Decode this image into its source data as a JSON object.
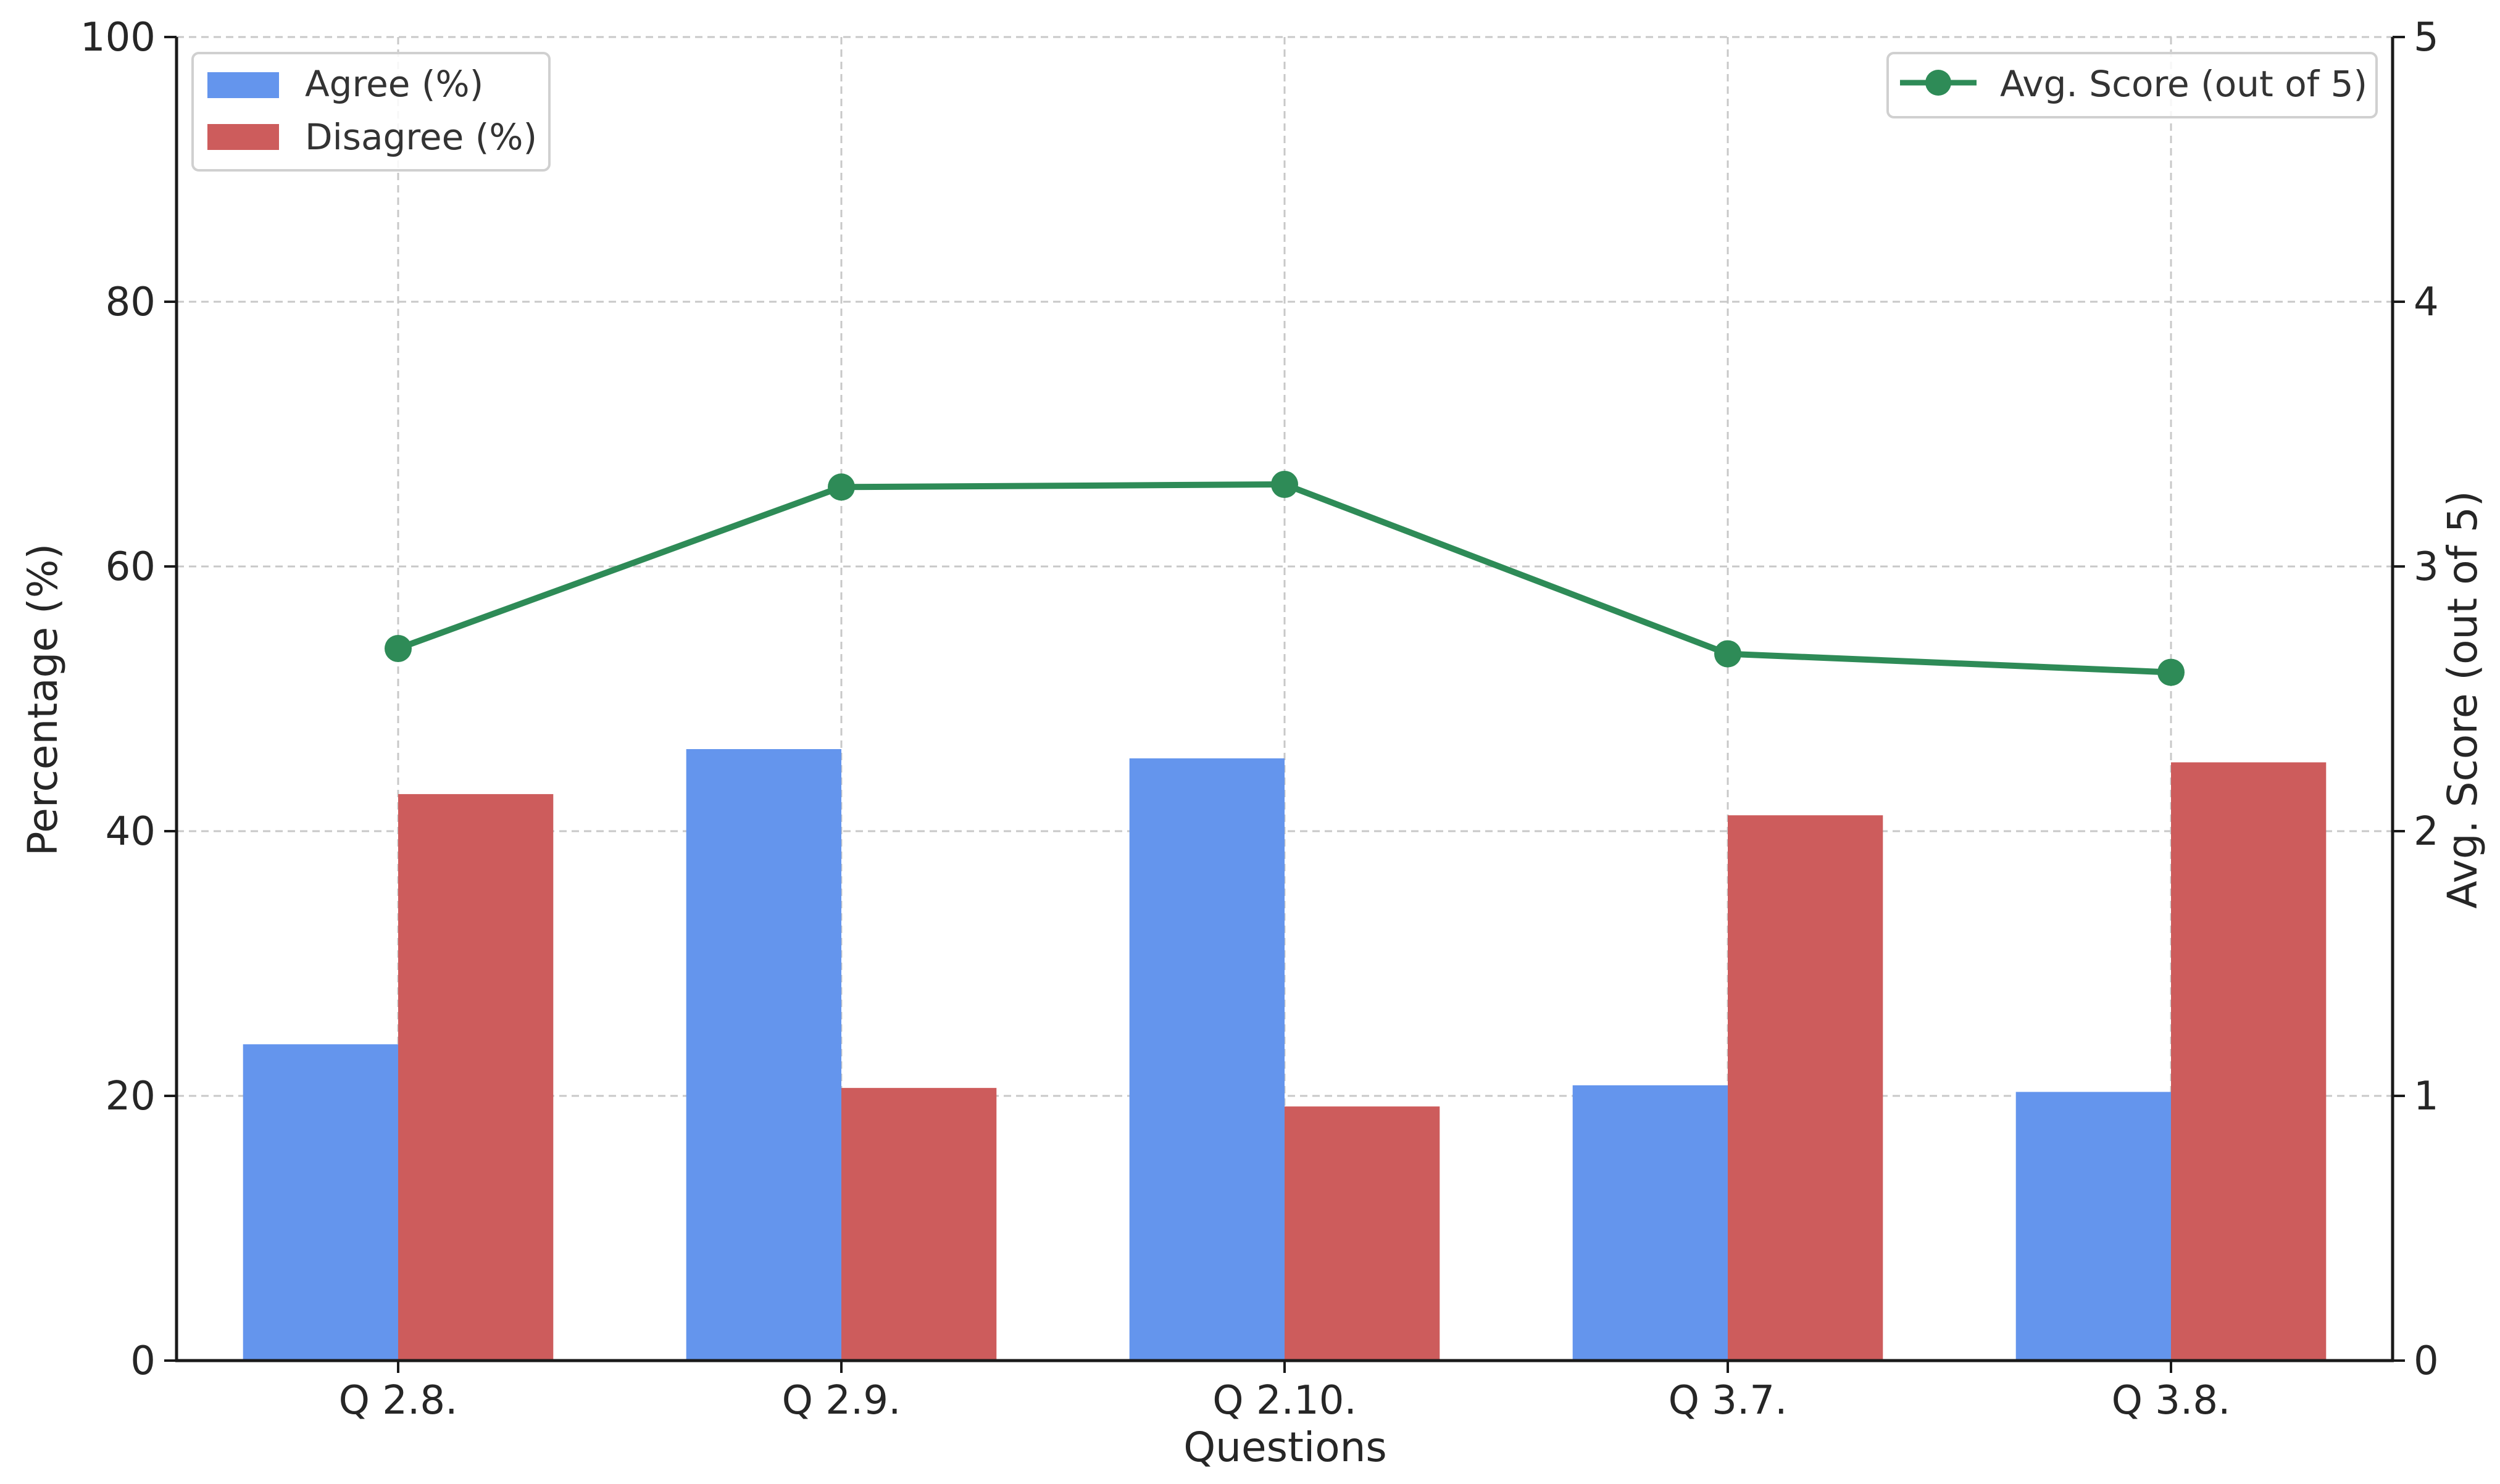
{
  "chart_data": {
    "type": "bar",
    "categories": [
      "Q 2.8.",
      "Q 2.9.",
      "Q 2.10.",
      "Q 3.7.",
      "Q 3.8."
    ],
    "xlabel": "Questions",
    "ylabel": "Percentage (%)",
    "y2label": "Avg. Score (out of 5)",
    "ylim": [
      0,
      100
    ],
    "y2lim": [
      0,
      5
    ],
    "yticks": [
      "0",
      "20",
      "40",
      "60",
      "80",
      "100"
    ],
    "y2ticks": [
      "0",
      "1",
      "2",
      "3",
      "4",
      "5"
    ],
    "grid": true,
    "series": [
      {
        "name": "Agree (%)",
        "type": "bar",
        "axis": "left",
        "color": "#6495ED",
        "values": [
          23.9,
          46.2,
          45.5,
          20.8,
          20.3
        ]
      },
      {
        "name": "Disagree (%)",
        "type": "bar",
        "axis": "left",
        "color": "#CD5C5C",
        "values": [
          42.8,
          20.6,
          19.2,
          41.2,
          45.2
        ]
      },
      {
        "name": "Avg. Score (out of 5)",
        "type": "line",
        "axis": "right",
        "color": "#2E8B57",
        "values": [
          2.69,
          3.3,
          3.31,
          2.67,
          2.6
        ]
      }
    ],
    "legend_left": [
      "Agree (%)",
      "Disagree (%)"
    ],
    "legend_right": [
      "Avg. Score (out of 5)"
    ]
  }
}
